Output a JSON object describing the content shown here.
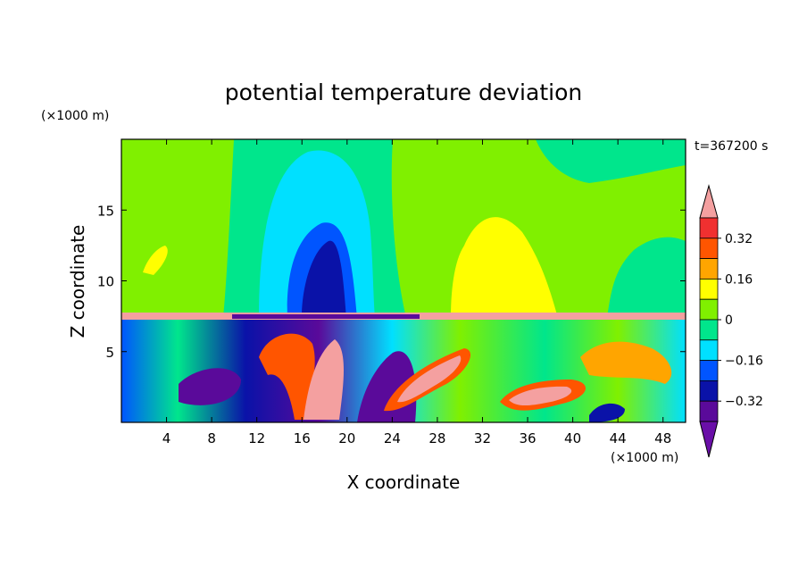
{
  "chart_data": {
    "type": "heatmap",
    "title": "potential temperature deviation",
    "xlabel": "X coordinate",
    "ylabel": "Z coordinate",
    "x_unit": "(×1000 m)",
    "y_unit": "(×1000 m)",
    "time_label": "t=367200 s",
    "xlim": [
      0,
      50
    ],
    "ylim": [
      0,
      20
    ],
    "x_ticks": [
      4,
      8,
      12,
      16,
      20,
      24,
      28,
      32,
      36,
      40,
      44,
      48
    ],
    "y_ticks": [
      5,
      10,
      15
    ],
    "colorbar": {
      "levels": [
        -0.4,
        -0.32,
        -0.24,
        -0.16,
        -0.08,
        0,
        0.08,
        0.16,
        0.24,
        0.32,
        0.4
      ],
      "tick_labels": [
        "0.32",
        "0.16",
        "0",
        "−0.16",
        "−0.32"
      ],
      "tick_values": [
        0.32,
        0.16,
        0,
        -0.16,
        -0.32
      ],
      "colors": [
        "#6a0fa8",
        "#5a0a9a",
        "#0a12a8",
        "#0055ff",
        "#00e0ff",
        "#00e68c",
        "#80f000",
        "#ffff00",
        "#ffa500",
        "#ff5500",
        "#f03030",
        "#f4a0a0"
      ],
      "extend": "both"
    },
    "field_features": [
      {
        "x": 18,
        "z": 12,
        "value": -0.2
      },
      {
        "x": 17.5,
        "z": 13,
        "value": -0.28
      },
      {
        "x": 30,
        "z": 13,
        "value": 0.16
      },
      {
        "x": 46,
        "z": 12,
        "value": 0.08
      },
      {
        "x": 40,
        "z": 18,
        "value": -0.04
      },
      {
        "x": 4,
        "z": 11,
        "value": 0.16
      },
      {
        "x": 26,
        "z": 3,
        "value": 0.36
      },
      {
        "x": 18,
        "z": 3.5,
        "value": 0.36
      },
      {
        "x": 22,
        "z": 2.5,
        "value": -0.36
      },
      {
        "x": 40,
        "z": 2,
        "value": 0.36
      }
    ]
  }
}
